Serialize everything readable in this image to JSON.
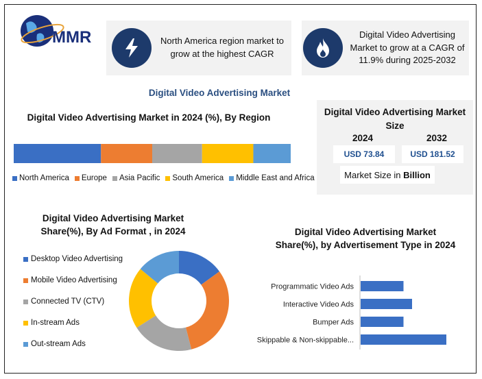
{
  "logo": {
    "text": "MMR"
  },
  "callout_left": {
    "text": "North America region market to grow at the highest CAGR",
    "icon": "lightning-icon"
  },
  "callout_right": {
    "text": "Digital Video Advertising Market to grow at a CAGR of 11.9% during 2025-2032",
    "icon": "flame-icon"
  },
  "main_title": "Digital Video Advertising Market",
  "market_size": {
    "title": "Digital Video Advertising Market Size",
    "year_start": "2024",
    "year_end": "2032",
    "value_start": "USD 73.84",
    "value_end": "USD 181.52",
    "unit_label": "Market Size in",
    "unit_value": "Billion"
  },
  "colors": {
    "north_america": "#3a6fc4",
    "europe": "#ed7d31",
    "asia_pacific": "#a5a5a5",
    "south_america": "#ffc000",
    "middle_east_africa": "#5b9bd5",
    "bar_blue": "#3a6fc4",
    "icon_bg": "#1d3a6b"
  },
  "chart_data": [
    {
      "type": "bar",
      "orientation": "horizontal-stacked",
      "title": "Digital Video Advertising Market  in 2024 (%), By Region",
      "categories": [
        "2024"
      ],
      "series": [
        {
          "name": "North America",
          "values": [
            31.5
          ],
          "color": "#3a6fc4"
        },
        {
          "name": "Europe",
          "values": [
            18.5
          ],
          "color": "#ed7d31"
        },
        {
          "name": "Asia Pacific",
          "values": [
            18
          ],
          "color": "#a5a5a5"
        },
        {
          "name": "South America",
          "values": [
            18.5
          ],
          "color": "#ffc000"
        },
        {
          "name": "Middle East and Africa",
          "values": [
            13.5
          ],
          "color": "#5b9bd5"
        }
      ],
      "legend": "bottom"
    },
    {
      "type": "pie",
      "style": "donut",
      "title": "Digital Video Advertising Market Share(%), By  Ad Format , in 2024",
      "categories": [
        "Desktop Video Advertising",
        "Mobile Video Advertising",
        "Connected TV (CTV)",
        "In-stream Ads",
        "Out-stream Ads"
      ],
      "values": [
        15,
        31,
        20,
        20,
        14
      ],
      "colors": [
        "#3a6fc4",
        "#ed7d31",
        "#a5a5a5",
        "#ffc000",
        "#5b9bd5"
      ],
      "legend": "left"
    },
    {
      "type": "bar",
      "orientation": "horizontal",
      "title": "Digital Video Advertising Market Share(%), by Advertisement Type in 2024",
      "categories": [
        "Programmatic Video Ads",
        "Interactive Video Ads",
        "Bumper Ads",
        "Skippable & Non-skippable..."
      ],
      "values": [
        25,
        30,
        25,
        50
      ],
      "xlim": [
        0,
        60
      ],
      "color": "#3a6fc4",
      "grid": false
    }
  ]
}
